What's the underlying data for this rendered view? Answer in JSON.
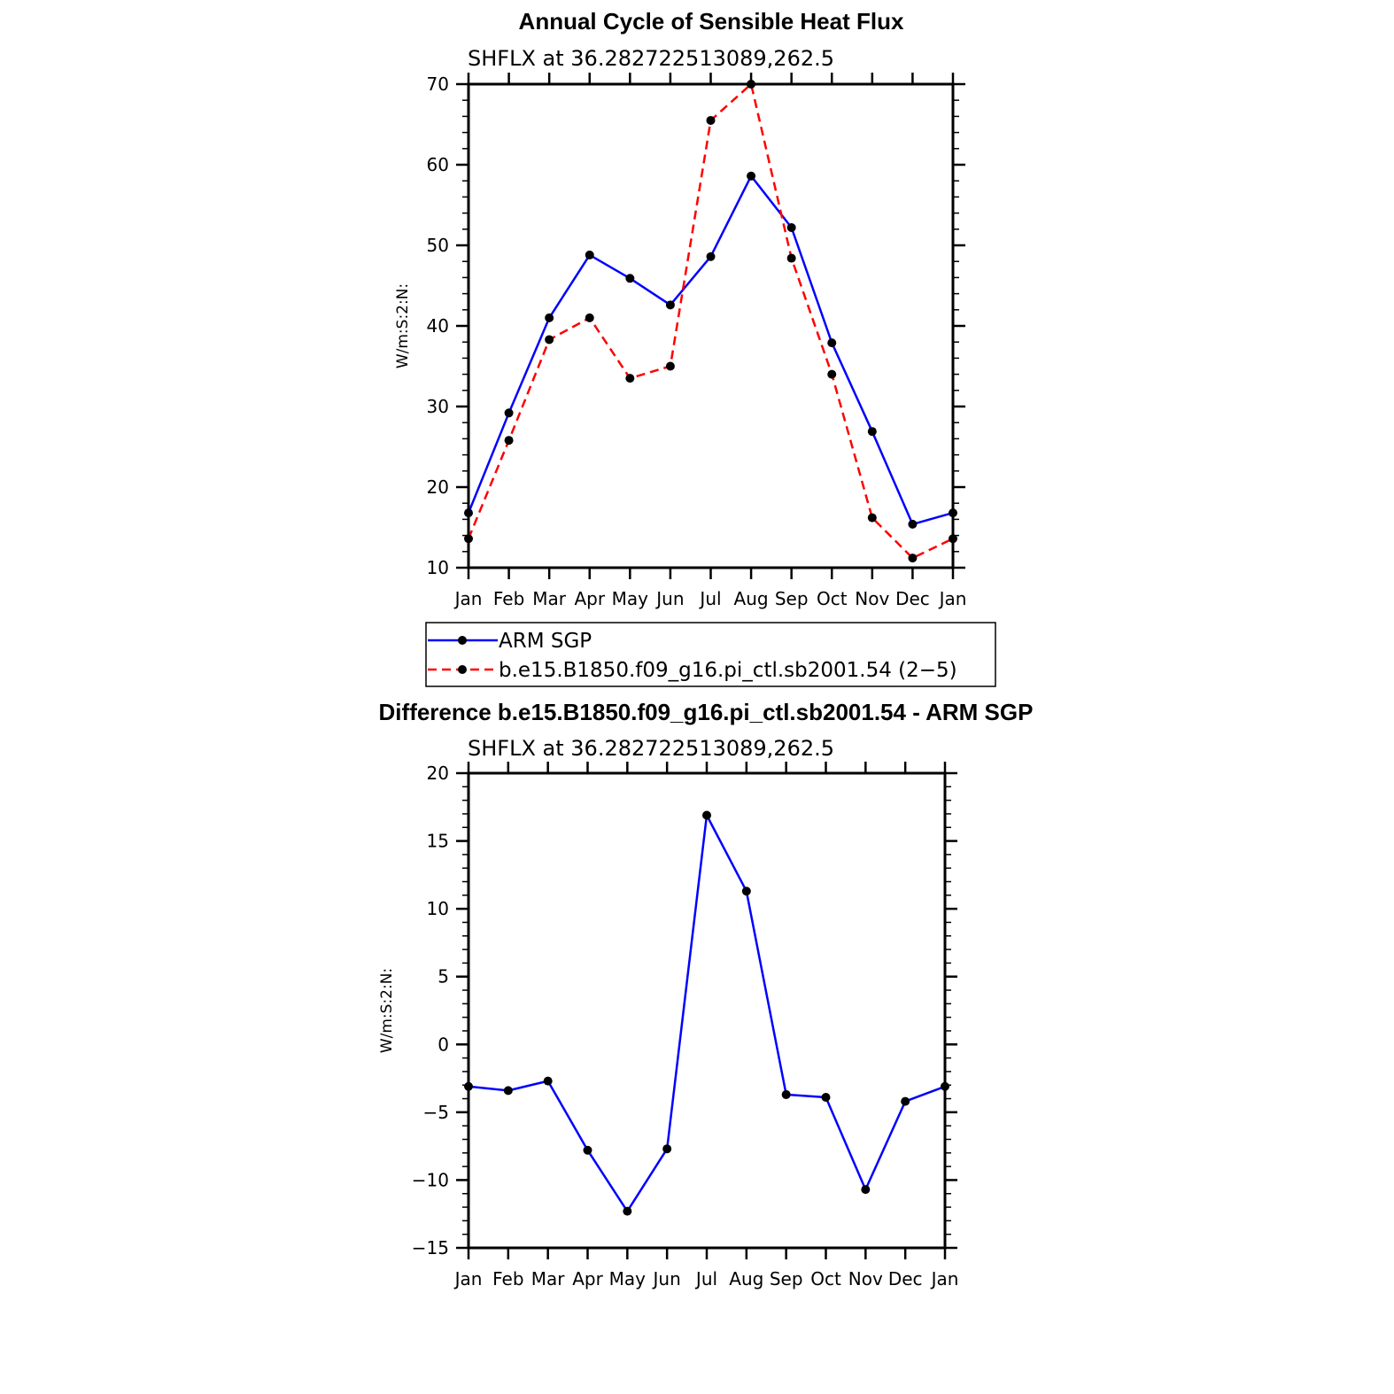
{
  "chart_data": [
    {
      "type": "line",
      "title": "Annual Cycle of Sensible Heat Flux",
      "subtitle": "SHFLX  at  36.282722513089,262.5",
      "ylabel": "W/m:S:2:N:",
      "categories": [
        "Jan",
        "Feb",
        "Mar",
        "Apr",
        "May",
        "Jun",
        "Jul",
        "Aug",
        "Sep",
        "Oct",
        "Nov",
        "Dec",
        "Jan"
      ],
      "yticks": [
        "10",
        "20",
        "30",
        "40",
        "50",
        "60",
        "70"
      ],
      "ylim": [
        10,
        70
      ],
      "grid": false,
      "legend_position": "below",
      "series": [
        {
          "name": "ARM  SGP",
          "color": "#0000ff",
          "dash": "solid",
          "values": [
            16.8,
            29.2,
            41.0,
            48.8,
            45.9,
            42.6,
            48.6,
            58.6,
            52.2,
            37.9,
            26.9,
            15.4,
            16.8
          ]
        },
        {
          "name": "b.e15.B1850.f09_g16.pi_ctl.sb2001.54  (2−5)",
          "color": "#ff0000",
          "dash": "dashed",
          "values": [
            13.6,
            25.8,
            38.3,
            41.0,
            33.5,
            35.0,
            65.5,
            70.0,
            48.4,
            34.0,
            16.2,
            11.2,
            13.6
          ]
        }
      ]
    },
    {
      "type": "line",
      "title": "Difference b.e15.B1850.f09_g16.pi_ctl.sb2001.54 - ARM SGP",
      "subtitle": "SHFLX  at  36.282722513089,262.5",
      "ylabel": "W/m:S:2:N:",
      "categories": [
        "Jan",
        "Feb",
        "Mar",
        "Apr",
        "May",
        "Jun",
        "Jul",
        "Aug",
        "Sep",
        "Oct",
        "Nov",
        "Dec",
        "Jan"
      ],
      "yticks": [
        "−15",
        "−10",
        "−5",
        "0",
        "5",
        "10",
        "15",
        "20"
      ],
      "ylim": [
        -15,
        20
      ],
      "grid": false,
      "series": [
        {
          "color": "#0000ff",
          "dash": "solid",
          "values": [
            -3.1,
            -3.4,
            -2.7,
            -7.8,
            -12.3,
            -7.7,
            16.9,
            11.3,
            -3.7,
            -3.9,
            -10.7,
            -4.2,
            -3.1
          ]
        }
      ]
    }
  ]
}
